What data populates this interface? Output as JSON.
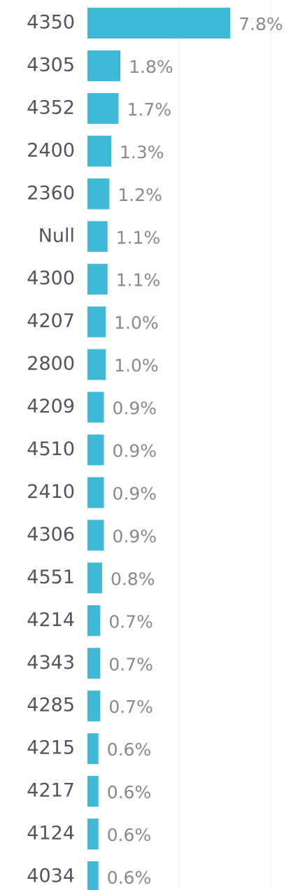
{
  "chart_data": {
    "type": "hbar",
    "categories": [
      "4350",
      "4305",
      "4352",
      "2400",
      "2360",
      "Null",
      "4300",
      "4207",
      "2800",
      "4209",
      "4510",
      "2410",
      "4306",
      "4551",
      "4214",
      "4343",
      "4285",
      "4215",
      "4217",
      "4124",
      "4034"
    ],
    "values": [
      7.8,
      1.8,
      1.7,
      1.3,
      1.2,
      1.1,
      1.1,
      1.0,
      1.0,
      0.9,
      0.9,
      0.9,
      0.9,
      0.8,
      0.7,
      0.7,
      0.7,
      0.6,
      0.6,
      0.6,
      0.6
    ],
    "value_labels": [
      "7.8%",
      "1.8%",
      "1.7%",
      "1.3%",
      "1.2%",
      "1.1%",
      "1.1%",
      "1.0%",
      "1.0%",
      "0.9%",
      "0.9%",
      "0.9%",
      "0.9%",
      "0.8%",
      "0.7%",
      "0.7%",
      "0.7%",
      "0.6%",
      "0.6%",
      "0.6%",
      "0.6%"
    ],
    "color": "#3fb9d8",
    "xlim": [
      0,
      11.5
    ],
    "gridlines": [
      5,
      10
    ]
  }
}
